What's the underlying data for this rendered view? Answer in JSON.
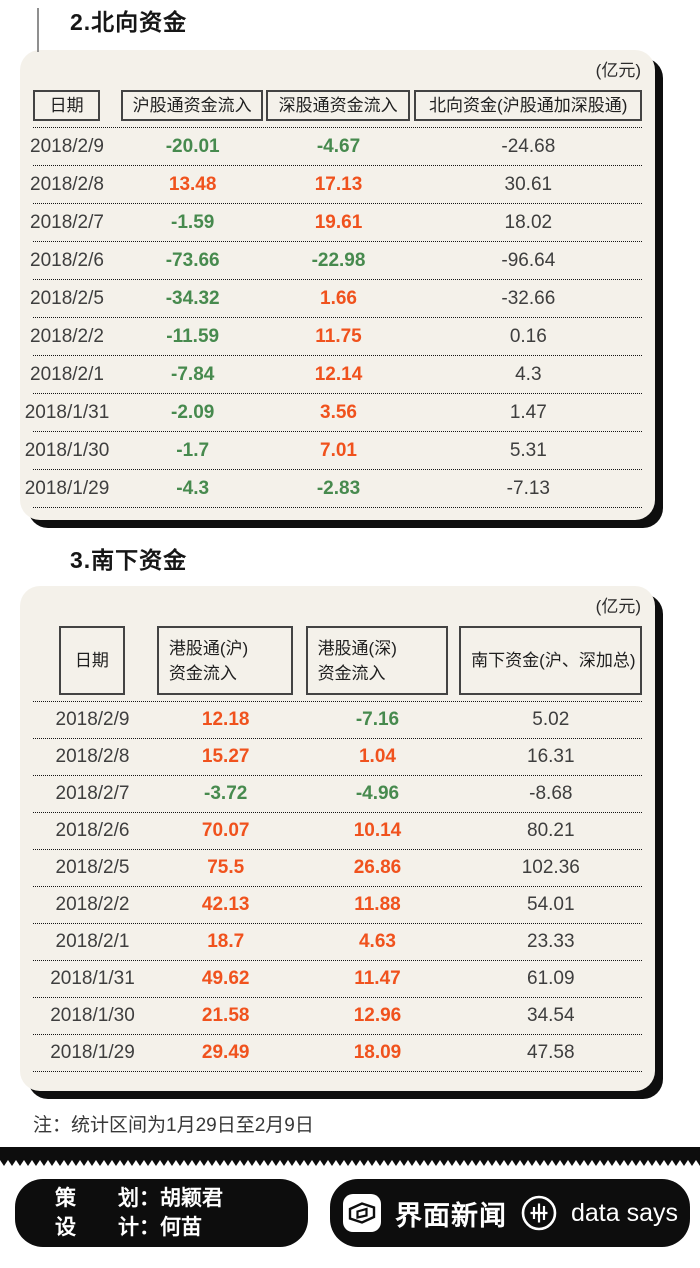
{
  "colors": {
    "positive_orange": "#f0521d",
    "negative_green": "#478a4e",
    "neutral_text": "#3e3e3e",
    "card_bg": "#f4f1ea",
    "ink": "#0d0d0d"
  },
  "sections": [
    {
      "title": "2.北向资金",
      "unit": "(亿元)",
      "headers": [
        [
          "日期"
        ],
        [
          "沪股通资金流入"
        ],
        [
          "深股通资金流入"
        ],
        [
          "北向资金(沪股通加深股通)"
        ]
      ],
      "rows": [
        [
          "2018/2/9",
          "-20.01",
          "-4.67",
          "-24.68"
        ],
        [
          "2018/2/8",
          "13.48",
          "17.13",
          "30.61"
        ],
        [
          "2018/2/7",
          "-1.59",
          "19.61",
          "18.02"
        ],
        [
          "2018/2/6",
          "-73.66",
          "-22.98",
          "-96.64"
        ],
        [
          "2018/2/5",
          "-34.32",
          "1.66",
          "-32.66"
        ],
        [
          "2018/2/2",
          "-11.59",
          "11.75",
          "0.16"
        ],
        [
          "2018/2/1",
          "-7.84",
          "12.14",
          "4.3"
        ],
        [
          "2018/1/31",
          "-2.09",
          "3.56",
          "1.47"
        ],
        [
          "2018/1/30",
          "-1.7",
          "7.01",
          "5.31"
        ],
        [
          "2018/1/29",
          "-4.3",
          "-2.83",
          "-7.13"
        ]
      ]
    },
    {
      "title": "3.南下资金",
      "unit": "(亿元)",
      "headers": [
        [
          "日期"
        ],
        [
          "港股通(沪)",
          "资金流入"
        ],
        [
          "港股通(深)",
          "资金流入"
        ],
        [
          "南下资金(沪、深加总)"
        ]
      ],
      "rows": [
        [
          "2018/2/9",
          "12.18",
          "-7.16",
          "5.02"
        ],
        [
          "2018/2/8",
          "15.27",
          "1.04",
          "16.31"
        ],
        [
          "2018/2/7",
          "-3.72",
          "-4.96",
          "-8.68"
        ],
        [
          "2018/2/6",
          "70.07",
          "10.14",
          "80.21"
        ],
        [
          "2018/2/5",
          "75.5",
          "26.86",
          "102.36"
        ],
        [
          "2018/2/2",
          "42.13",
          "11.88",
          "54.01"
        ],
        [
          "2018/2/1",
          "18.7",
          "4.63",
          "23.33"
        ],
        [
          "2018/1/31",
          "49.62",
          "11.47",
          "61.09"
        ],
        [
          "2018/1/30",
          "21.58",
          "12.96",
          "34.54"
        ],
        [
          "2018/1/29",
          "29.49",
          "18.09",
          "47.58"
        ]
      ]
    }
  ],
  "note": "注：统计区间为1月29日至2月9日",
  "footer": {
    "credits": [
      "策　　划：胡颖君",
      "设　　计：何苗"
    ],
    "brand": "界面新闻",
    "tagline": "data says"
  },
  "chart_data": [
    {
      "type": "table",
      "title": "2.北向资金",
      "unit": "亿元",
      "columns": [
        "日期",
        "沪股通资金流入",
        "深股通资金流入",
        "北向资金(沪股通加深股通)"
      ],
      "rows": [
        [
          "2018/2/9",
          -20.01,
          -4.67,
          -24.68
        ],
        [
          "2018/2/8",
          13.48,
          17.13,
          30.61
        ],
        [
          "2018/2/7",
          -1.59,
          19.61,
          18.02
        ],
        [
          "2018/2/6",
          -73.66,
          -22.98,
          -96.64
        ],
        [
          "2018/2/5",
          -34.32,
          1.66,
          -32.66
        ],
        [
          "2018/2/2",
          -11.59,
          11.75,
          0.16
        ],
        [
          "2018/2/1",
          -7.84,
          12.14,
          4.3
        ],
        [
          "2018/1/31",
          -2.09,
          3.56,
          1.47
        ],
        [
          "2018/1/30",
          -1.7,
          7.01,
          5.31
        ],
        [
          "2018/1/29",
          -4.3,
          -2.83,
          -7.13
        ]
      ],
      "color_rule": "negative values green, positive values orange, last column neutral dark"
    },
    {
      "type": "table",
      "title": "3.南下资金",
      "unit": "亿元",
      "columns": [
        "日期",
        "港股通(沪)资金流入",
        "港股通(深)资金流入",
        "南下资金(沪、深加总)"
      ],
      "rows": [
        [
          "2018/2/9",
          12.18,
          -7.16,
          5.02
        ],
        [
          "2018/2/8",
          15.27,
          1.04,
          16.31
        ],
        [
          "2018/2/7",
          -3.72,
          -4.96,
          -8.68
        ],
        [
          "2018/2/6",
          70.07,
          10.14,
          80.21
        ],
        [
          "2018/2/5",
          75.5,
          26.86,
          102.36
        ],
        [
          "2018/2/2",
          42.13,
          11.88,
          54.01
        ],
        [
          "2018/2/1",
          18.7,
          4.63,
          23.33
        ],
        [
          "2018/1/31",
          49.62,
          11.47,
          61.09
        ],
        [
          "2018/1/30",
          21.58,
          12.96,
          34.54
        ],
        [
          "2018/1/29",
          29.49,
          18.09,
          47.58
        ]
      ],
      "color_rule": "negative values green, positive values orange, last column neutral dark"
    }
  ]
}
